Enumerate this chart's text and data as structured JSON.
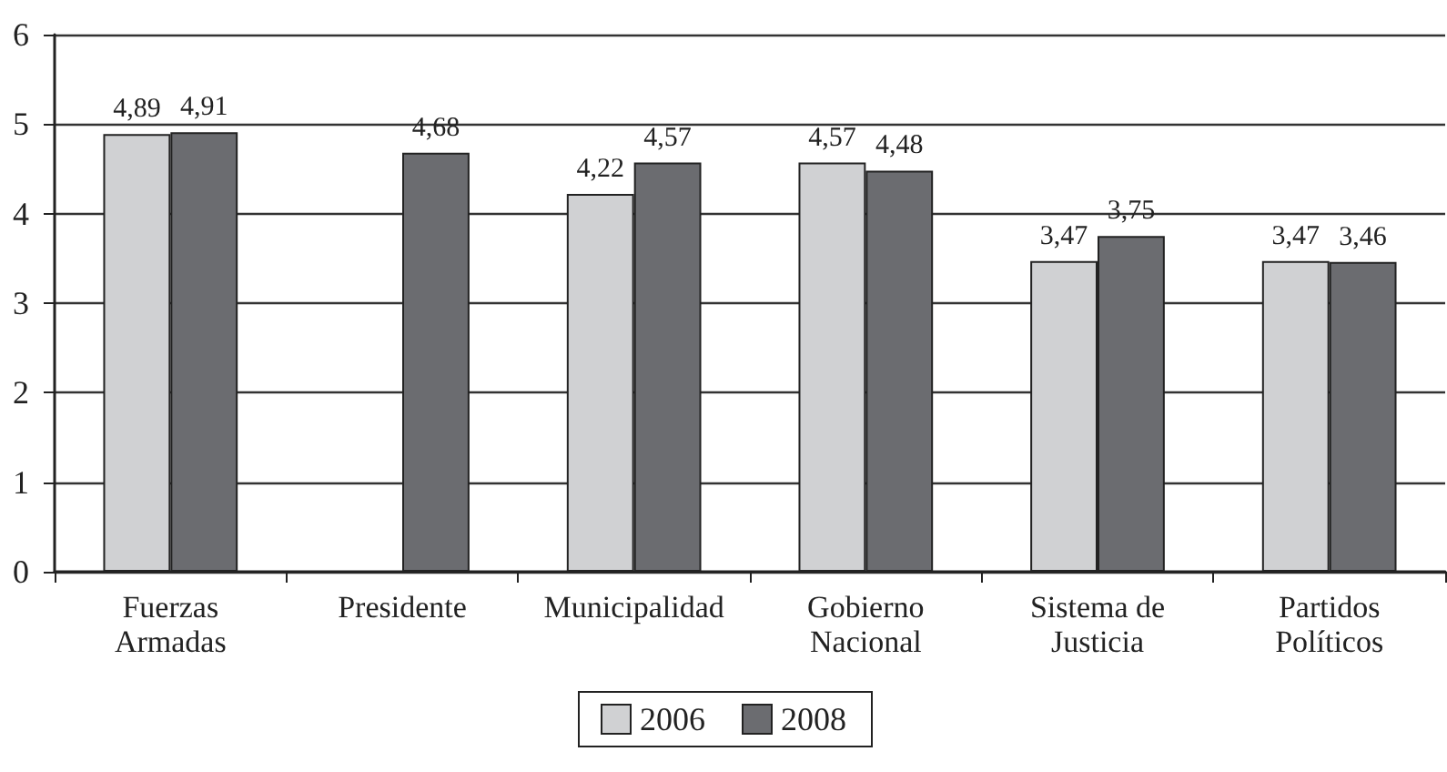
{
  "chart_data": {
    "type": "bar",
    "categories": [
      "Fuerzas\nArmadas",
      "Presidente",
      "Municipalidad",
      "Gobierno\nNacional",
      "Sistema de\nJusticia",
      "Partidos\nPolíticos"
    ],
    "series": [
      {
        "name": "2006",
        "color": "#d0d1d3",
        "values": [
          4.89,
          null,
          4.22,
          4.57,
          3.47,
          3.47
        ],
        "value_labels": [
          "4,89",
          null,
          "4,22",
          "4,57",
          "3,47",
          "3,47"
        ]
      },
      {
        "name": "2008",
        "color": "#6b6c70",
        "values": [
          4.91,
          4.68,
          4.57,
          4.48,
          3.75,
          3.46
        ],
        "value_labels": [
          "4,91",
          "4,68",
          "4,57",
          "4,48",
          "3,75",
          "3,46"
        ]
      }
    ],
    "ylim": [
      0,
      6
    ],
    "yticks": [
      0,
      1,
      2,
      3,
      4,
      5,
      6
    ],
    "grid": "y",
    "legend": "bottom"
  }
}
